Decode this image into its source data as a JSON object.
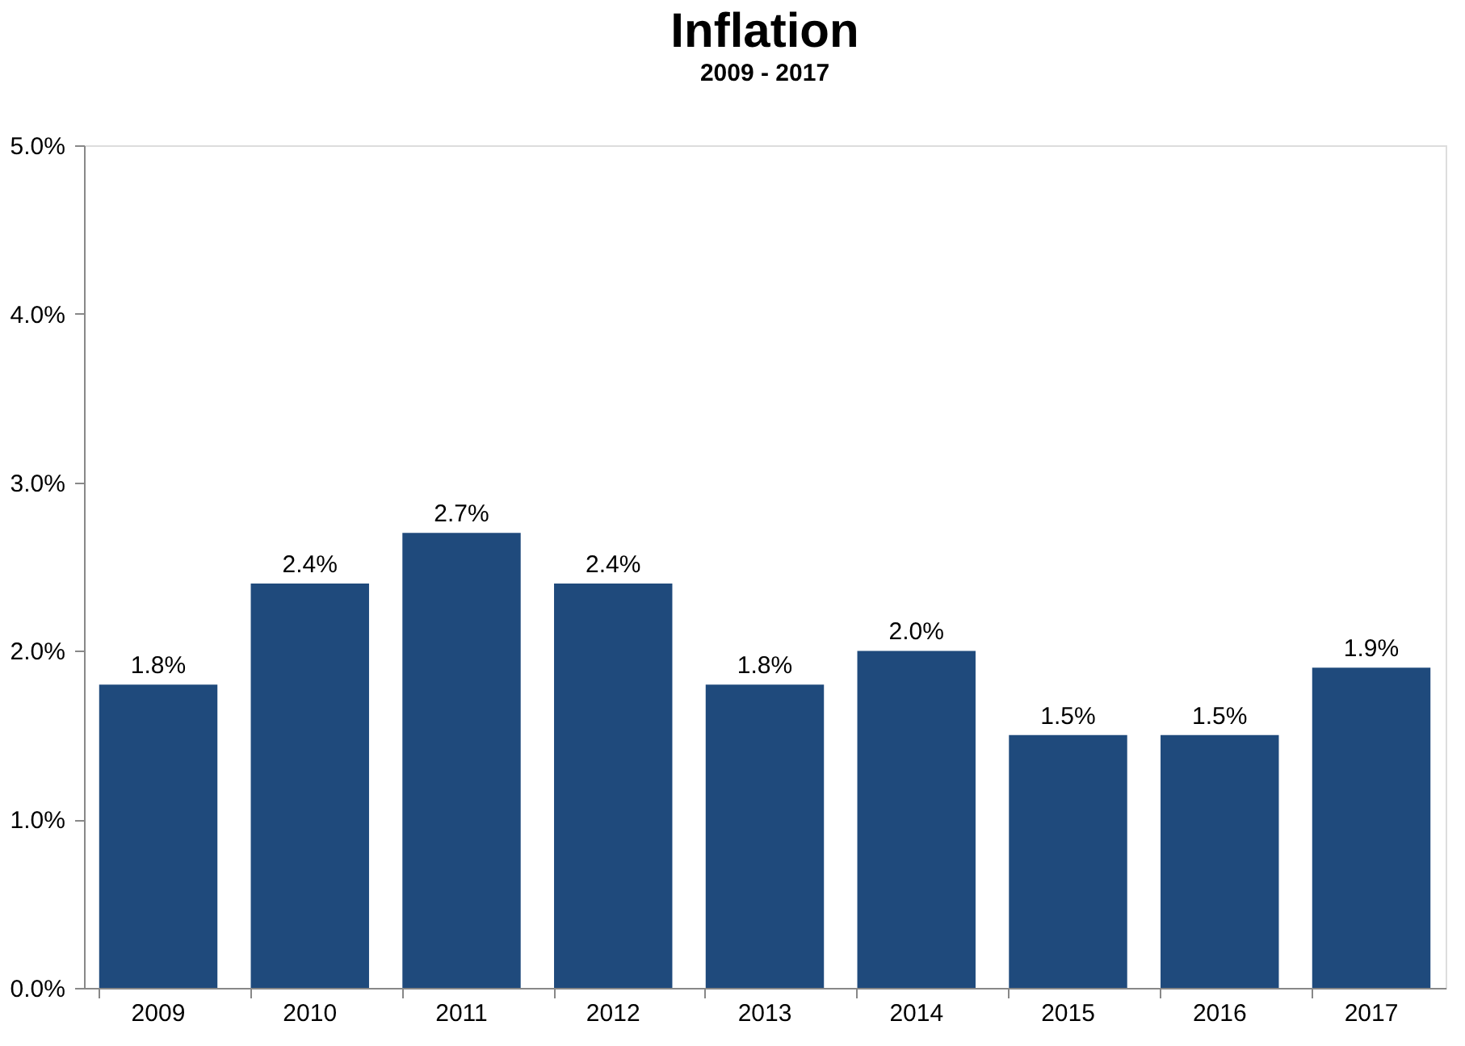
{
  "chart_data": {
    "type": "bar",
    "title": "Inflation",
    "subtitle": "2009 - 2017",
    "categories": [
      "2009",
      "2010",
      "2011",
      "2012",
      "2013",
      "2014",
      "2015",
      "2016",
      "2017"
    ],
    "values": [
      1.8,
      2.4,
      2.7,
      2.4,
      1.8,
      2.0,
      1.5,
      1.5,
      1.9
    ],
    "value_labels": [
      "1.8%",
      "2.4%",
      "2.7%",
      "2.4%",
      "1.8%",
      "2.0%",
      "1.5%",
      "1.5%",
      "1.9%"
    ],
    "color": "#1f4a7c",
    "ylim": [
      0,
      5
    ],
    "yticks": [
      {
        "value": 0,
        "label": "0.0%"
      },
      {
        "value": 1,
        "label": "1.0%"
      },
      {
        "value": 2,
        "label": "2.0%"
      },
      {
        "value": 3,
        "label": "3.0%"
      },
      {
        "value": 4,
        "label": "4.0%"
      },
      {
        "value": 5,
        "label": "5.0%"
      }
    ],
    "grid": false
  }
}
